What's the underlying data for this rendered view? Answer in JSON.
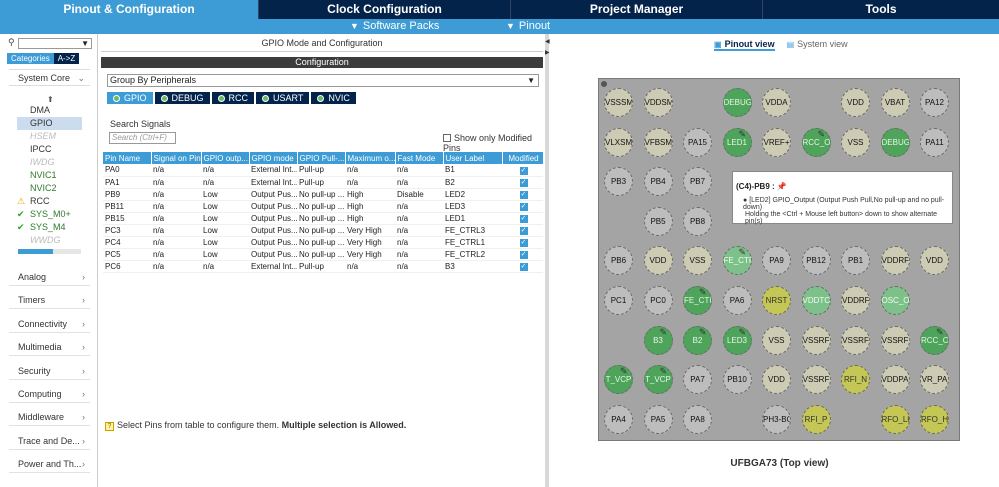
{
  "main_tabs": [
    {
      "label": "Pinout & Configuration",
      "active": true
    },
    {
      "label": "Clock Configuration",
      "active": false
    },
    {
      "label": "Project Manager",
      "active": false
    },
    {
      "label": "Tools",
      "active": false
    }
  ],
  "subbar": {
    "software_packs": "Software Packs",
    "pinout": "Pinout"
  },
  "left": {
    "category_tabs": [
      "Categories",
      "A->Z"
    ],
    "system_core": "System Core",
    "peripherals": [
      {
        "label": "DMA",
        "state": "normal"
      },
      {
        "label": "GPIO",
        "state": "selected"
      },
      {
        "label": "HSEM",
        "state": "disabled"
      },
      {
        "label": "IPCC",
        "state": "normal"
      },
      {
        "label": "IWDG",
        "state": "disabled"
      },
      {
        "label": "NVIC1",
        "state": "green"
      },
      {
        "label": "NVIC2",
        "state": "green"
      },
      {
        "label": "RCC",
        "state": "warning"
      },
      {
        "label": "SYS_M0+",
        "state": "checked"
      },
      {
        "label": "SYS_M4",
        "state": "checked"
      },
      {
        "label": "WWDG",
        "state": "disabled"
      }
    ],
    "categories": [
      "Analog",
      "Timers",
      "Connectivity",
      "Multimedia",
      "Security",
      "Computing",
      "Middleware",
      "Trace and De...",
      "Power and Th..."
    ]
  },
  "mid": {
    "title": "GPIO Mode and Configuration",
    "config_label": "Configuration",
    "group_by": "Group By Peripherals",
    "peripheral_tabs": [
      {
        "label": "GPIO",
        "active": true
      },
      {
        "label": "DEBUG",
        "active": false
      },
      {
        "label": "RCC",
        "active": false
      },
      {
        "label": "USART",
        "active": false
      },
      {
        "label": "NVIC",
        "active": false
      }
    ],
    "search_label": "Search Signals",
    "search_placeholder": "Search (Ctrl+F)",
    "show_modified": "Show only Modified Pins",
    "columns": [
      "Pin Name",
      "Signal on Pin",
      "GPIO outp...",
      "GPIO mode",
      "GPIO Pull-...",
      "Maximum o...",
      "Fast Mode",
      "User Label",
      "Modified"
    ],
    "rows": [
      [
        "PA0",
        "n/a",
        "n/a",
        "External Int...",
        "Pull-up",
        "n/a",
        "n/a",
        "B1"
      ],
      [
        "PA1",
        "n/a",
        "n/a",
        "External Int...",
        "Pull-up",
        "n/a",
        "n/a",
        "B2"
      ],
      [
        "PB9",
        "n/a",
        "Low",
        "Output Pus...",
        "No pull-up ...",
        "High",
        "Disable",
        "LED2"
      ],
      [
        "PB11",
        "n/a",
        "Low",
        "Output Pus...",
        "No pull-up ...",
        "High",
        "n/a",
        "LED3"
      ],
      [
        "PB15",
        "n/a",
        "Low",
        "Output Pus...",
        "No pull-up ...",
        "High",
        "n/a",
        "LED1"
      ],
      [
        "PC3",
        "n/a",
        "Low",
        "Output Pus...",
        "No pull-up ...",
        "Very High",
        "n/a",
        "FE_CTRL3"
      ],
      [
        "PC4",
        "n/a",
        "Low",
        "Output Pus...",
        "No pull-up ...",
        "Very High",
        "n/a",
        "FE_CTRL1"
      ],
      [
        "PC5",
        "n/a",
        "Low",
        "Output Pus...",
        "No pull-up ...",
        "Very High",
        "n/a",
        "FE_CTRL2"
      ],
      [
        "PC6",
        "n/a",
        "n/a",
        "External Int...",
        "Pull-up",
        "n/a",
        "n/a",
        "B3"
      ]
    ],
    "hint_prefix": "Select Pins from table to configure them.",
    "hint_bold": "Multiple selection is Allowed."
  },
  "right": {
    "view_tabs": [
      "Pinout view",
      "System view"
    ],
    "caption": "UFBGA73 (Top view)",
    "tooltip": {
      "title": "(C4)-PB9 :",
      "line1": "[LED2] GPIO_Output (Output Push Pull,No pull-up and no pull-down)",
      "line2": "Holding the <Ctrl + Mouse left button> down to show alternate pin(s)"
    },
    "pin_rows": [
      [
        [
          "VSSSMP",
          "beige"
        ],
        [
          "VDDSM",
          "beige"
        ],
        [
          "",
          ""
        ],
        [
          "DEBUG",
          "green"
        ],
        [
          "VDDA",
          "beige"
        ],
        [
          "",
          ""
        ],
        [
          "VDD",
          "beige"
        ],
        [
          "VBAT",
          "beige"
        ],
        [
          "PA12",
          "gray"
        ]
      ],
      [
        [
          "VLXSMPS",
          "beige"
        ],
        [
          "VFBSMP",
          "beige"
        ],
        [
          "PA15",
          "gray"
        ],
        [
          "LED1",
          "green"
        ],
        [
          "VREF+",
          "beige"
        ],
        [
          "RCC_O",
          "green"
        ],
        [
          "VSS",
          "beige"
        ],
        [
          "DEBUG",
          "green"
        ],
        [
          "PA11",
          "gray"
        ]
      ],
      [
        [
          "PB3",
          "gray"
        ],
        [
          "PB4",
          "gray"
        ],
        [
          "PB7",
          "gray"
        ],
        [
          "",
          ""
        ],
        [
          "",
          ""
        ],
        [
          "",
          ""
        ],
        [
          "",
          ""
        ],
        [
          "",
          ""
        ],
        [
          "",
          ""
        ]
      ],
      [
        [
          "",
          ""
        ],
        [
          "PB5",
          "gray"
        ],
        [
          "PB8",
          "gray"
        ],
        [
          "",
          ""
        ],
        [
          "",
          ""
        ],
        [
          "",
          ""
        ],
        [
          "",
          ""
        ],
        [
          "",
          ""
        ],
        [
          "",
          ""
        ]
      ],
      [
        [
          "PB6",
          "gray"
        ],
        [
          "VDD",
          "beige"
        ],
        [
          "VSS",
          "beige"
        ],
        [
          "FE_CTR",
          "lgreen"
        ],
        [
          "PA9",
          "gray"
        ],
        [
          "PB12",
          "gray"
        ],
        [
          "PB1",
          "gray"
        ],
        [
          "VDDRF",
          "beige"
        ],
        [
          "VDD",
          "beige"
        ]
      ],
      [
        [
          "PC1",
          "gray"
        ],
        [
          "PC0",
          "gray"
        ],
        [
          "FE_CTR",
          "green"
        ],
        [
          "PA6",
          "gray"
        ],
        [
          "NRST",
          "olive"
        ],
        [
          "VDDTCX",
          "lgreen"
        ],
        [
          "VDDRF1",
          "beige"
        ],
        [
          "OSC_O",
          "lgreen"
        ],
        [
          "",
          ""
        ]
      ],
      [
        [
          "",
          ""
        ],
        [
          "B3",
          "green"
        ],
        [
          "B2",
          "green"
        ],
        [
          "LED3",
          "green"
        ],
        [
          "VSS",
          "beige"
        ],
        [
          "VSSRF",
          "beige"
        ],
        [
          "VSSRF",
          "beige"
        ],
        [
          "VSSRF",
          "beige"
        ],
        [
          "RCC_O",
          "green"
        ]
      ],
      [
        [
          "T_VCP",
          "green"
        ],
        [
          "T_VCP",
          "green"
        ],
        [
          "PA7",
          "gray"
        ],
        [
          "PB10",
          "gray"
        ],
        [
          "VDD",
          "beige"
        ],
        [
          "VSSRF",
          "beige"
        ],
        [
          "RFI_N",
          "olive"
        ],
        [
          "VDDPA",
          "beige"
        ],
        [
          "VR_PA",
          "beige"
        ]
      ],
      [
        [
          "PA4",
          "gray"
        ],
        [
          "PA5",
          "gray"
        ],
        [
          "PA8",
          "gray"
        ],
        [
          "",
          ""
        ],
        [
          "PH3-BO",
          "gray"
        ],
        [
          "RFI_P",
          "olive"
        ],
        [
          "",
          ""
        ],
        [
          "RFO_LP",
          "olive"
        ],
        [
          "RFO_HP",
          "olive"
        ]
      ]
    ],
    "marked_pins": [
      "LED1",
      "RCC_O",
      "FE_CTR",
      "B3",
      "B2",
      "LED3",
      "T_VCP"
    ]
  }
}
